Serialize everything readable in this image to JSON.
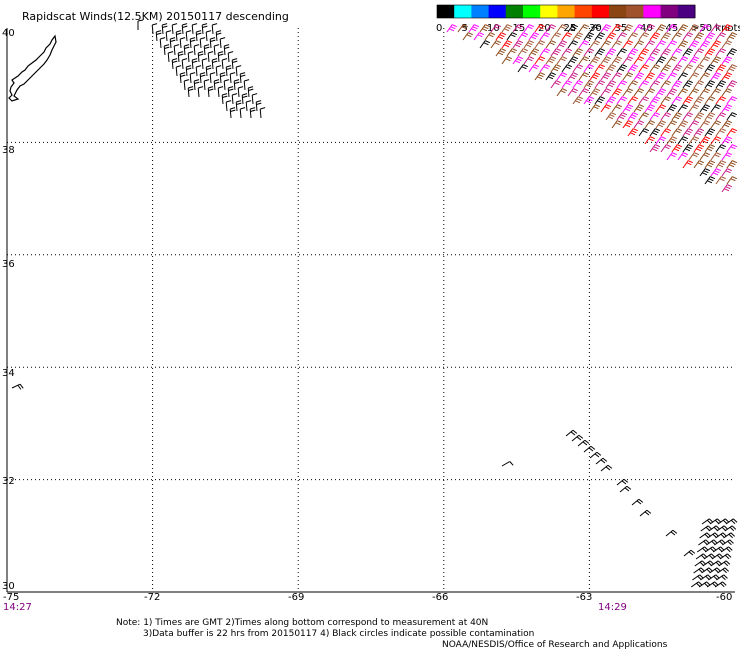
{
  "title": "Rapidscat Winds(12.5KM) 20150117 descending",
  "colorbar": {
    "labels": [
      "0",
      "5",
      "10",
      "15",
      "20",
      "25",
      "30",
      "35",
      "40",
      "45",
      ">50 knots"
    ],
    "colors": [
      "#000000",
      "#00ffff",
      "#0080ff",
      "#0000ff",
      "#008000",
      "#00ff00",
      "#ffff00",
      "#ffa500",
      "#ff4500",
      "#ff0000",
      "#8b4513",
      "#a0522d",
      "#ff00ff",
      "#800080",
      "#4b0082"
    ]
  },
  "axes": {
    "lon_labels": [
      "-75",
      "-72",
      "-69",
      "-66",
      "-63",
      "-60"
    ],
    "lat_labels": [
      "40",
      "38",
      "36",
      "34",
      "32",
      "30"
    ],
    "lon_range": [
      -75,
      -60
    ],
    "lat_range": [
      30,
      40
    ]
  },
  "times": {
    "left": "14:27",
    "right": "14:29"
  },
  "notes": {
    "line1": "Note: 1) Times are GMT 2)Times along bottom correspond to measurement at 40N",
    "line2": "3)Data buffer is 22 hrs from 20150117 4) Black circles indicate possible contamination",
    "credit": "NOAA/NESDIS/Office of Research and Applications"
  },
  "swaths": [
    {
      "name": "northwest-swath",
      "color": "#000000",
      "lon": [
        -71.5,
        -70.7
      ],
      "lat": [
        38.6,
        40.0
      ]
    },
    {
      "name": "northeast-swath",
      "color": "#8b4513",
      "lon": [
        -64.0,
        -60.0
      ],
      "lat": [
        37.9,
        40.0
      ]
    },
    {
      "name": "southeast-track",
      "color": "#000000",
      "lon": [
        -62.8,
        -61.3
      ],
      "lat": [
        31.5,
        32.9
      ]
    },
    {
      "name": "southeast-corner",
      "color": "#000000",
      "lon": [
        -60.7,
        -60.0
      ],
      "lat": [
        30.0,
        31.2
      ]
    }
  ]
}
